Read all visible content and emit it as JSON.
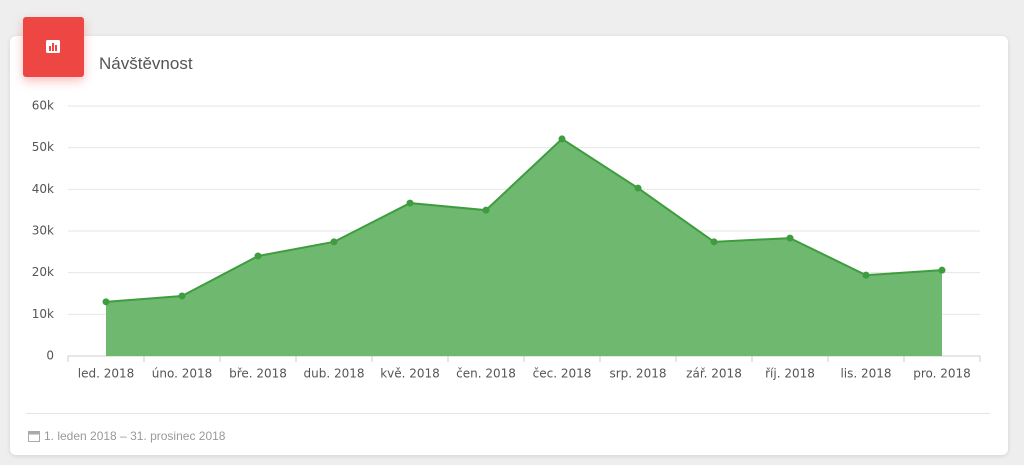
{
  "chart_data": {
    "type": "area",
    "title": "Návštěvnost",
    "categories": [
      "led. 2018",
      "úno. 2018",
      "bře. 2018",
      "dub. 2018",
      "kvě. 2018",
      "čen. 2018",
      "čec. 2018",
      "srp. 2018",
      "zář. 2018",
      "říj. 2018",
      "lis. 2018",
      "pro. 2018"
    ],
    "values": [
      13000,
      14400,
      24000,
      27400,
      36700,
      35000,
      52100,
      40300,
      27400,
      28300,
      19400,
      20600
    ],
    "color": "#6fb86f",
    "line_color": "#3f9c3f",
    "ylim": [
      0,
      60000
    ],
    "yticks": [
      0,
      {
        "value": 10000,
        "label": "10k"
      },
      {
        "value": 20000,
        "label": "20k"
      },
      {
        "value": 30000,
        "label": "30k"
      },
      {
        "value": 40000,
        "label": "40k"
      },
      {
        "value": 50000,
        "label": "50k"
      },
      {
        "value": 60000,
        "label": "60k"
      }
    ],
    "grid": true
  },
  "footer": {
    "date_range": "1. leden 2018 – 31. prosinec 2018"
  }
}
